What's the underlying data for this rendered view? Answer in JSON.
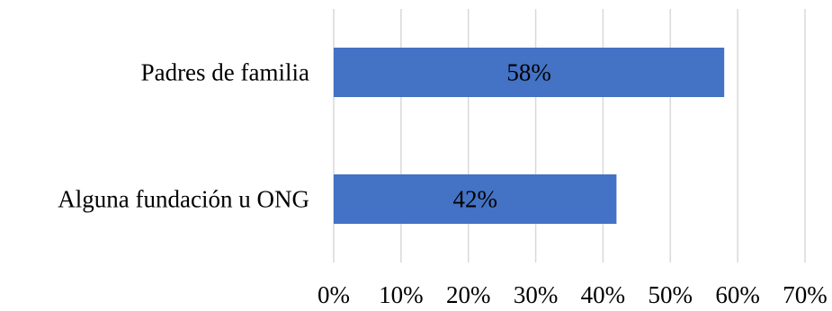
{
  "chart_data": {
    "type": "bar",
    "orientation": "horizontal",
    "categories": [
      "Padres de familia",
      "Alguna fundación u ONG"
    ],
    "values": [
      58,
      42
    ],
    "data_labels": [
      "58%",
      "42%"
    ],
    "xlim": [
      0,
      70
    ],
    "x_ticks": [
      "0%",
      "10%",
      "20%",
      "30%",
      "40%",
      "50%",
      "60%",
      "70%"
    ],
    "grid": "vertical",
    "legend": "none",
    "title": "",
    "xlabel": "",
    "ylabel": "",
    "bar_color": "#4472C4",
    "grid_color": "#D9D9D9"
  }
}
